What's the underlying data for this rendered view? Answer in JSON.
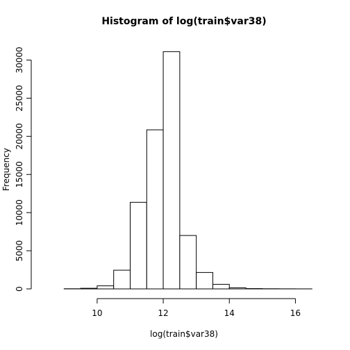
{
  "chart_data": {
    "type": "bar",
    "subtype": "histogram",
    "title": "Histogram of log(train$var38)",
    "xlabel": "log(train$var38)",
    "ylabel": "Frequency",
    "bin_edges": [
      9.0,
      9.5,
      10.0,
      10.5,
      11.0,
      11.5,
      12.0,
      12.5,
      13.0,
      13.5,
      14.0,
      14.5,
      15.0,
      15.5,
      16.0,
      16.5
    ],
    "values": [
      20,
      80,
      400,
      2450,
      11350,
      20850,
      31100,
      7000,
      2150,
      600,
      150,
      40,
      20,
      10,
      5
    ],
    "xlim": [
      8.3,
      17.0
    ],
    "ylim": [
      0,
      32500
    ],
    "x_ticks": [
      10,
      12,
      14,
      16
    ],
    "x_tick_labels": [
      "10",
      "12",
      "14",
      "16"
    ],
    "y_ticks": [
      0,
      5000,
      10000,
      15000,
      20000,
      25000,
      30000
    ],
    "y_tick_labels": [
      "0",
      "5000",
      "10000",
      "15000",
      "20000",
      "25000",
      "30000"
    ],
    "grid": false,
    "bar_fill": "#ffffff",
    "bar_stroke": "#000000"
  }
}
